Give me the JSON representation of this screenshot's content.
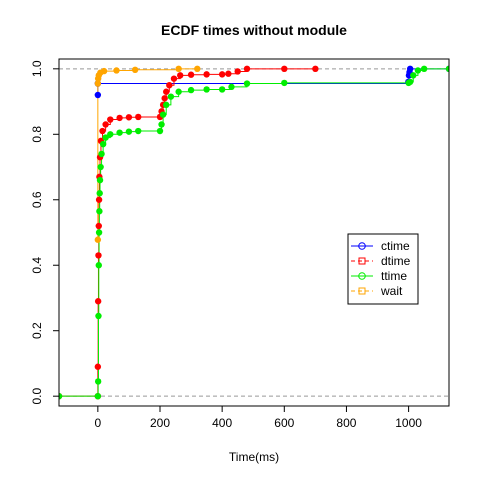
{
  "chart_data": {
    "type": "scatter",
    "title": "ECDF times without module",
    "xlabel": "Time(ms)",
    "ylabel": "",
    "xlim": [
      -125,
      1130
    ],
    "ylim": [
      -0.03,
      1.03
    ],
    "x_ticks": [
      0,
      200,
      400,
      600,
      800,
      1000
    ],
    "y_ticks": [
      0.0,
      0.2,
      0.4,
      0.6,
      0.8,
      1.0
    ],
    "x_tick_labels": [
      "0",
      "200",
      "400",
      "600",
      "800",
      "1000"
    ],
    "y_tick_labels": [
      "0.0",
      "0.2",
      "0.4",
      "0.6",
      "0.8",
      "1.0"
    ],
    "reference_lines": [
      0,
      1
    ],
    "grid": false,
    "legend_position": "right",
    "series": [
      {
        "name": "ctime",
        "color": "#0000ff",
        "line_style": "solid",
        "marker": "circle",
        "points": [
          [
            0,
            0.92
          ],
          [
            0,
            0.955
          ],
          [
            999,
            0.96
          ],
          [
            1001,
            0.98
          ],
          [
            1003,
            0.99
          ],
          [
            1005,
            1.0
          ],
          [
            1130,
            1.0
          ]
        ]
      },
      {
        "name": "dtime",
        "color": "#ff0000",
        "line_style": "dashed",
        "marker": "square",
        "points": [
          [
            -125,
            0.0
          ],
          [
            0,
            0.0
          ],
          [
            0,
            0.09
          ],
          [
            1,
            0.29
          ],
          [
            2,
            0.43
          ],
          [
            3,
            0.52
          ],
          [
            4,
            0.6
          ],
          [
            5,
            0.67
          ],
          [
            7,
            0.73
          ],
          [
            10,
            0.78
          ],
          [
            15,
            0.81
          ],
          [
            25,
            0.83
          ],
          [
            40,
            0.845
          ],
          [
            70,
            0.85
          ],
          [
            100,
            0.852
          ],
          [
            130,
            0.853
          ],
          [
            200,
            0.853
          ],
          [
            205,
            0.87
          ],
          [
            210,
            0.89
          ],
          [
            215,
            0.91
          ],
          [
            220,
            0.93
          ],
          [
            230,
            0.95
          ],
          [
            245,
            0.97
          ],
          [
            265,
            0.98
          ],
          [
            300,
            0.982
          ],
          [
            350,
            0.983
          ],
          [
            400,
            0.983
          ],
          [
            420,
            0.985
          ],
          [
            450,
            0.992
          ],
          [
            480,
            1.0
          ],
          [
            600,
            1.0
          ],
          [
            700,
            1.0
          ]
        ]
      },
      {
        "name": "ttime",
        "color": "#00ee00",
        "line_style": "solid",
        "marker": "circle",
        "points": [
          [
            -125,
            0.0
          ],
          [
            0,
            0.0
          ],
          [
            1,
            0.045
          ],
          [
            2,
            0.245
          ],
          [
            3,
            0.4
          ],
          [
            4,
            0.5
          ],
          [
            5,
            0.565
          ],
          [
            6,
            0.62
          ],
          [
            7,
            0.66
          ],
          [
            9,
            0.7
          ],
          [
            12,
            0.74
          ],
          [
            17,
            0.77
          ],
          [
            25,
            0.79
          ],
          [
            40,
            0.8
          ],
          [
            70,
            0.805
          ],
          [
            100,
            0.808
          ],
          [
            130,
            0.81
          ],
          [
            200,
            0.81
          ],
          [
            205,
            0.83
          ],
          [
            210,
            0.86
          ],
          [
            220,
            0.89
          ],
          [
            235,
            0.915
          ],
          [
            260,
            0.93
          ],
          [
            300,
            0.935
          ],
          [
            350,
            0.937
          ],
          [
            400,
            0.937
          ],
          [
            430,
            0.945
          ],
          [
            480,
            0.955
          ],
          [
            600,
            0.957
          ],
          [
            1000,
            0.957
          ],
          [
            1005,
            0.96
          ],
          [
            1015,
            0.98
          ],
          [
            1030,
            0.995
          ],
          [
            1050,
            1.0
          ],
          [
            1130,
            1.0
          ]
        ]
      },
      {
        "name": "wait",
        "color": "#ffa500",
        "line_style": "dashed",
        "marker": "square",
        "points": [
          [
            0,
            0.478
          ],
          [
            0,
            0.955
          ],
          [
            1,
            0.97
          ],
          [
            3,
            0.98
          ],
          [
            8,
            0.988
          ],
          [
            20,
            0.993
          ],
          [
            60,
            0.995
          ],
          [
            120,
            0.997
          ],
          [
            260,
            1.0
          ],
          [
            320,
            1.0
          ]
        ]
      }
    ]
  }
}
